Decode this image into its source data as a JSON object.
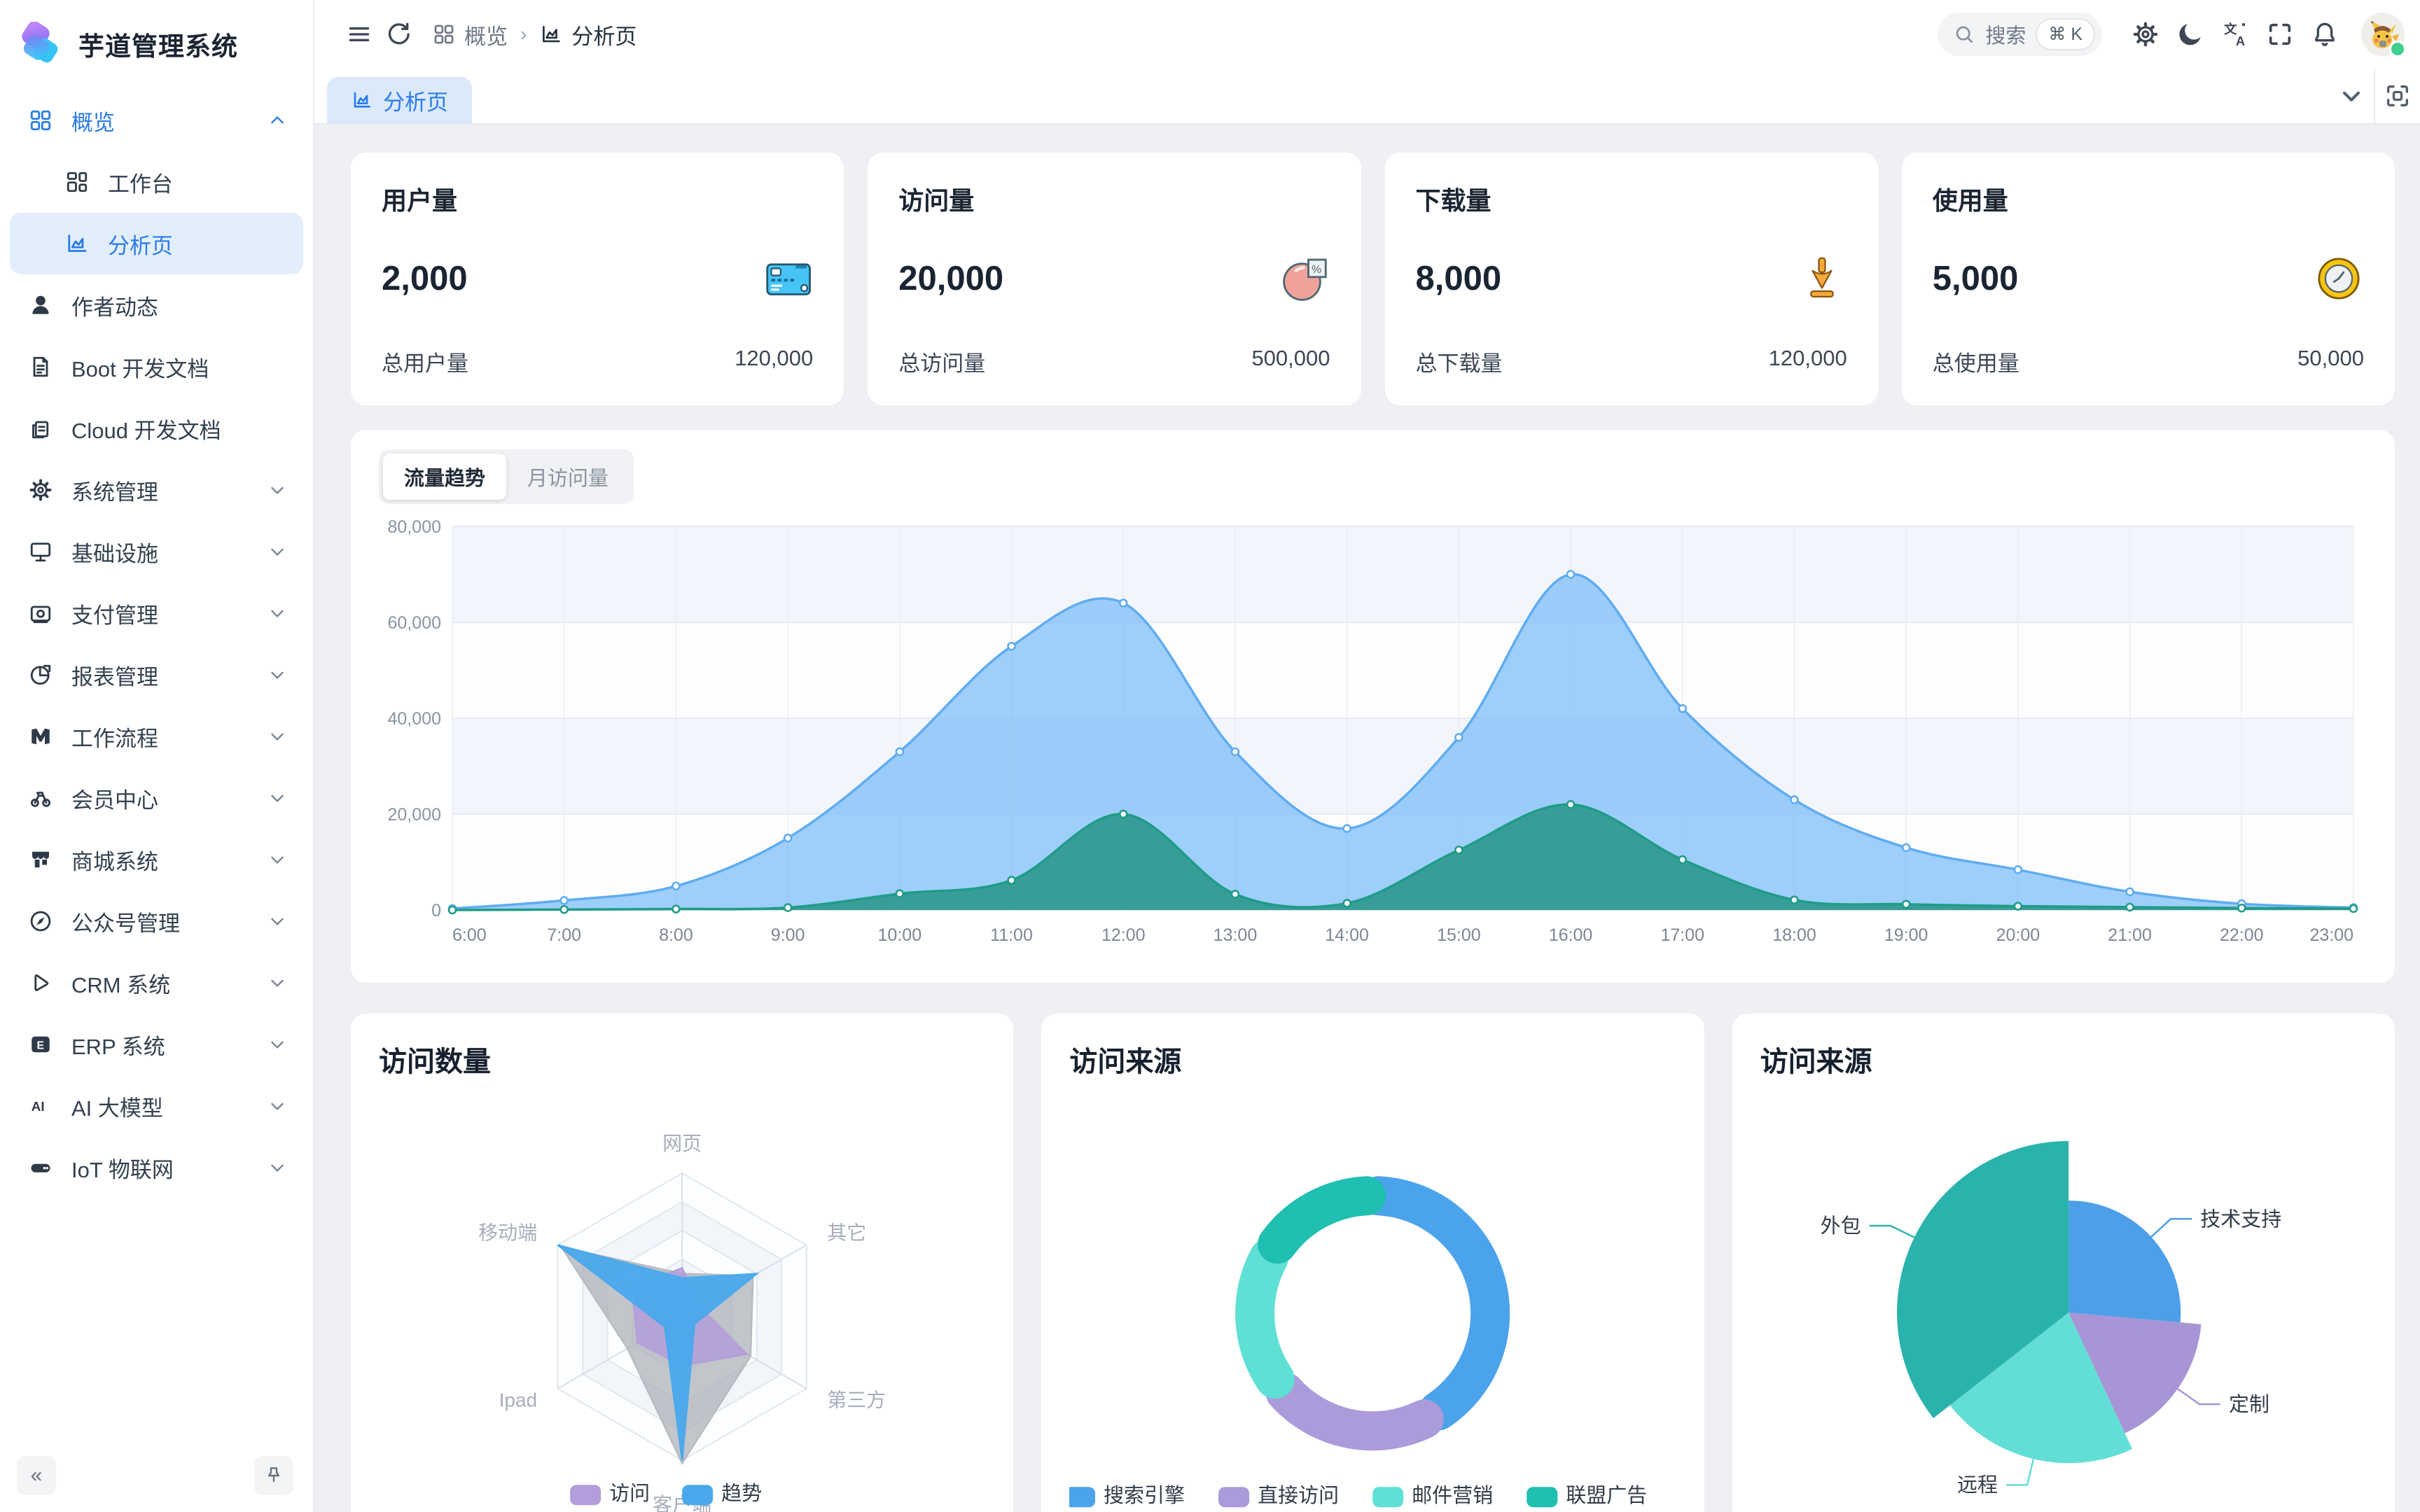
{
  "app": {
    "title": "芋道管理系统"
  },
  "sidebar": {
    "collapse_label": "«",
    "menu": [
      {
        "label": "概览",
        "icon": "grid-icon",
        "accent": true,
        "chevron": "up"
      },
      {
        "label": "工作台",
        "icon": "workbench-icon",
        "sub": true
      },
      {
        "label": "分析页",
        "icon": "chart-icon",
        "sub": true,
        "active": true
      },
      {
        "label": "作者动态",
        "icon": "user-icon"
      },
      {
        "label": "Boot 开发文档",
        "icon": "document-icon"
      },
      {
        "label": "Cloud 开发文档",
        "icon": "documents-copy-icon"
      },
      {
        "label": "系统管理",
        "icon": "gear-icon",
        "chevron": "down"
      },
      {
        "label": "基础设施",
        "icon": "monitor-icon",
        "chevron": "down"
      },
      {
        "label": "支付管理",
        "icon": "wallet-icon",
        "chevron": "down"
      },
      {
        "label": "报表管理",
        "icon": "pie-icon",
        "chevron": "down"
      },
      {
        "label": "工作流程",
        "icon": "flow-icon",
        "chevron": "down"
      },
      {
        "label": "会员中心",
        "icon": "member-icon",
        "chevron": "down"
      },
      {
        "label": "商城系统",
        "icon": "shop-icon",
        "chevron": "down"
      },
      {
        "label": "公众号管理",
        "icon": "compass-icon",
        "chevron": "down"
      },
      {
        "label": "CRM 系统",
        "icon": "crm-icon",
        "chevron": "down"
      },
      {
        "label": "ERP 系统",
        "icon": "erp-icon",
        "chevron": "down"
      },
      {
        "label": "AI 大模型",
        "icon": "ai-icon",
        "chevron": "down"
      },
      {
        "label": "IoT 物联网",
        "icon": "iot-icon",
        "chevron": "down"
      }
    ]
  },
  "header": {
    "breadcrumb": [
      {
        "icon": "grid-icon",
        "label": "概览"
      },
      {
        "icon": "chart-icon",
        "label": "分析页"
      }
    ],
    "search": {
      "placeholder": "搜索",
      "shortcut": "⌘ K"
    }
  },
  "tabbar": {
    "active_tab": {
      "icon": "chart-icon",
      "label": "分析页"
    }
  },
  "stat_cards": [
    {
      "title": "用户量",
      "value": "2,000",
      "icon": "credit-card-stat-icon",
      "total_label": "总用户量",
      "total_value": "120,000"
    },
    {
      "title": "访问量",
      "value": "20,000",
      "icon": "pie-percent-stat-icon",
      "total_label": "总访问量",
      "total_value": "500,000"
    },
    {
      "title": "下载量",
      "value": "8,000",
      "icon": "download-stat-icon",
      "total_label": "总下载量",
      "total_value": "120,000"
    },
    {
      "title": "使用量",
      "value": "5,000",
      "icon": "clock-stat-icon",
      "total_label": "总使用量",
      "total_value": "50,000"
    }
  ],
  "chart_card": {
    "tabs": [
      {
        "label": "流量趋势",
        "active": true
      },
      {
        "label": "月访问量",
        "active": false
      }
    ]
  },
  "bottom_cards": {
    "radar": {
      "title": "访问数量"
    },
    "donut": {
      "title": "访问来源"
    },
    "rose": {
      "title": "访问来源"
    }
  },
  "chart_data": [
    {
      "type": "area",
      "x": [
        "6:00",
        "7:00",
        "8:00",
        "9:00",
        "10:00",
        "11:00",
        "12:00",
        "13:00",
        "14:00",
        "15:00",
        "16:00",
        "17:00",
        "18:00",
        "19:00",
        "20:00",
        "21:00",
        "22:00",
        "23:00"
      ],
      "ylim": [
        0,
        80000
      ],
      "yticks": [
        "0",
        "20,000",
        "40,000",
        "60,000",
        "80,000"
      ],
      "grid": true,
      "series": [
        {
          "id": "blue",
          "line": "#5facf1",
          "fill": "rgba(125,190,248,0.75)",
          "values": [
            300,
            2000,
            5000,
            15000,
            33000,
            55000,
            64000,
            33000,
            17000,
            36000,
            70000,
            42000,
            23000,
            13000,
            8400,
            3800,
            1300,
            500
          ]
        },
        {
          "id": "green",
          "line": "#1e9c86",
          "fill": "rgba(42,150,138,0.88)",
          "values": [
            0,
            100,
            200,
            500,
            3400,
            6200,
            20000,
            3300,
            1400,
            12500,
            22000,
            10500,
            2100,
            1200,
            800,
            600,
            400,
            300
          ]
        }
      ]
    },
    {
      "type": "radar",
      "title": "访问数量",
      "indicators": [
        "网页",
        "其它",
        "第三方",
        "客户端",
        "Ipad",
        "移动端"
      ],
      "max": 100,
      "legend_position": "bottom",
      "series": [
        {
          "name": "访问",
          "color": "#b39ddb",
          "values": [
            34,
            14,
            52,
            34,
            36,
            40
          ]
        },
        {
          "name": "趋势",
          "color": "#4aa9ec",
          "values": [
            27,
            60,
            10,
            100,
            14,
            100
          ]
        }
      ],
      "shadow": {
        "color": "#aeb2b8",
        "values": [
          30,
          57,
          55,
          102,
          44,
          97
        ]
      },
      "legend": [
        "访问",
        "趋势"
      ]
    },
    {
      "type": "donut",
      "title": "访问来源",
      "legend_position": "bottom",
      "slices": [
        {
          "label": "搜索引擎",
          "pct": 42,
          "color": "#4ba3eb",
          "a0": 3,
          "a1": 146
        },
        {
          "label": "直接访问",
          "pct": 22,
          "color": "#ac9bdb",
          "a0": 154,
          "a1": 228
        },
        {
          "label": "邮件营销",
          "pct": 19,
          "color": "#5fe0d5",
          "a0": 236,
          "a1": 298
        },
        {
          "label": "联盟广告",
          "pct": 17,
          "color": "#1fbfb2",
          "a0": 306,
          "a1": 357
        }
      ]
    },
    {
      "type": "pie",
      "rose": "radius",
      "title": "访问来源",
      "slices": [
        {
          "label": "技术支持",
          "pct": 26,
          "color": "#4c9fe8",
          "a0": 0,
          "a1": 95,
          "r": 160
        },
        {
          "label": "定制",
          "pct": 17,
          "color": "#a795d6",
          "a0": 95,
          "a1": 155,
          "r": 190
        },
        {
          "label": "远程",
          "pct": 21,
          "color": "#63ded6",
          "a0": 155,
          "a1": 232,
          "r": 215
        },
        {
          "label": "外包",
          "pct": 36,
          "color": "#2ab3ac",
          "a0": 232,
          "a1": 360,
          "r": 245
        }
      ]
    }
  ]
}
